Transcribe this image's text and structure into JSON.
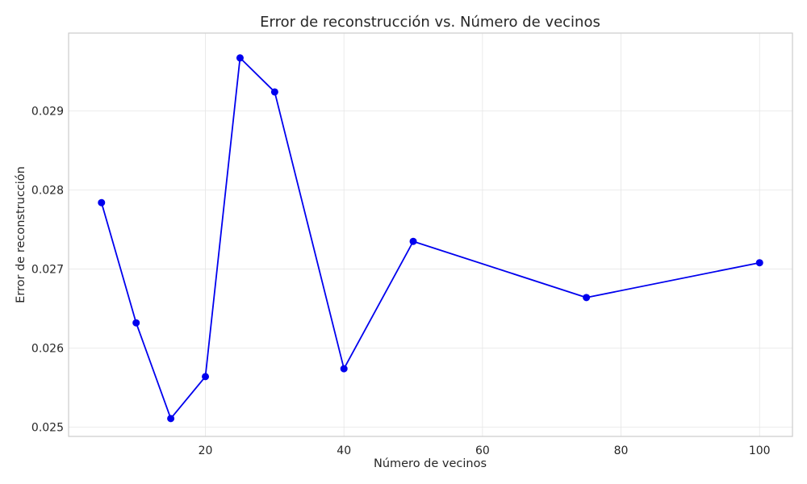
{
  "chart_data": {
    "type": "line",
    "title": "Error de reconstrucción vs. Número de vecinos",
    "xlabel": "Número de vecinos",
    "ylabel": "Error de reconstrucción",
    "x": [
      5,
      10,
      15,
      20,
      25,
      30,
      40,
      50,
      75,
      100
    ],
    "series": [
      {
        "name": "",
        "values": [
          0.02784,
          0.02632,
          0.02511,
          0.02564,
          0.02967,
          0.02924,
          0.02574,
          0.02735,
          0.02664,
          0.02708
        ]
      }
    ],
    "xlim": [
      0.25,
      104.75
    ],
    "ylim": [
      0.024884,
      0.029984
    ],
    "xticks": [
      20,
      40,
      60,
      80,
      100
    ],
    "xtick_labels": [
      "20",
      "40",
      "60",
      "80",
      "100"
    ],
    "yticks": [
      0.025,
      0.026,
      0.027,
      0.028,
      0.029
    ],
    "ytick_labels": [
      "0.025",
      "0.026",
      "0.027",
      "0.028",
      "0.029"
    ],
    "grid": true,
    "color": "#0000ee",
    "marker": "circle"
  }
}
